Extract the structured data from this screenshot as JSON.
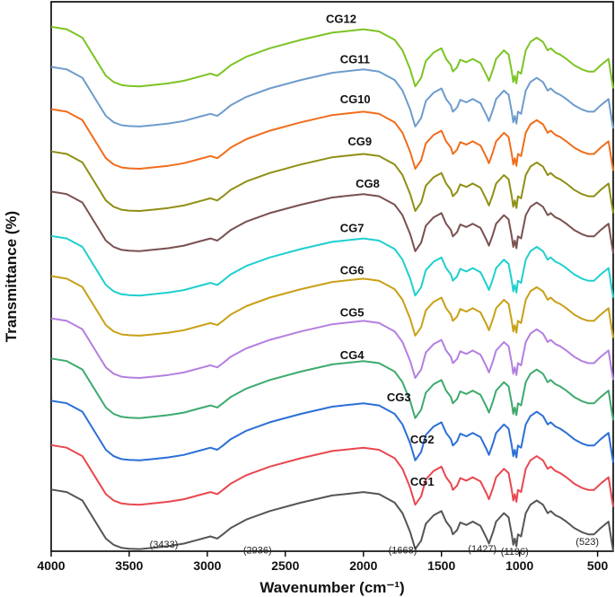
{
  "chart_data": {
    "type": "line",
    "title": "",
    "xlabel": "Wavenumber (cm⁻¹)",
    "ylabel": "Transmittance (%)",
    "xlim": [
      4000,
      400
    ],
    "x_reversed": true,
    "ylim": [
      0,
      13
    ],
    "y_ticks_shown": false,
    "x_ticks": [
      4000,
      3500,
      3000,
      2500,
      2000,
      1500,
      1000,
      500
    ],
    "x_tick_labels": [
      "4000",
      "3500",
      "3000",
      "2500",
      "2000",
      "1500",
      "1000",
      "500"
    ],
    "x": [
      4000,
      3900,
      3800,
      3700,
      3650,
      3600,
      3550,
      3500,
      3433,
      3350,
      3250,
      3150,
      3050,
      2980,
      2936,
      2900,
      2850,
      2750,
      2600,
      2400,
      2200,
      2000,
      1900,
      1800,
      1750,
      1700,
      1668,
      1630,
      1600,
      1550,
      1500,
      1470,
      1440,
      1427,
      1400,
      1380,
      1340,
      1300,
      1250,
      1210,
      1196,
      1170,
      1150,
      1100,
      1070,
      1050,
      1040,
      1030,
      1020,
      1010,
      990,
      960,
      930,
      890,
      850,
      820,
      800,
      770,
      740,
      700,
      650,
      600,
      560,
      523,
      480,
      430,
      400
    ],
    "series": [
      {
        "name": "CG1",
        "color": "#555555",
        "offset": 0.0,
        "values": [
          1.46,
          1.4,
          1.2,
          0.6,
          0.3,
          0.15,
          0.08,
          0.06,
          0.05,
          0.08,
          0.12,
          0.18,
          0.28,
          0.35,
          0.3,
          0.4,
          0.55,
          0.75,
          0.95,
          1.15,
          1.32,
          1.4,
          1.35,
          1.15,
          0.9,
          0.45,
          0.05,
          0.25,
          0.65,
          0.85,
          0.95,
          0.7,
          0.55,
          0.4,
          0.5,
          0.68,
          0.62,
          0.7,
          0.6,
          0.3,
          0.18,
          0.45,
          0.7,
          0.9,
          0.8,
          0.4,
          0.15,
          0.3,
          0.12,
          0.4,
          0.35,
          0.9,
          1.1,
          1.2,
          1.1,
          0.9,
          0.95,
          0.85,
          0.8,
          0.7,
          0.55,
          0.45,
          0.4,
          0.4,
          0.55,
          0.7,
          0.0
        ]
      },
      {
        "name": "CG2",
        "color": "#e8474e",
        "offset": 1.05,
        "values": [
          1.46,
          1.4,
          1.2,
          0.6,
          0.3,
          0.15,
          0.08,
          0.06,
          0.05,
          0.08,
          0.12,
          0.18,
          0.28,
          0.35,
          0.3,
          0.4,
          0.55,
          0.75,
          0.95,
          1.15,
          1.32,
          1.4,
          1.35,
          1.15,
          0.9,
          0.45,
          0.05,
          0.25,
          0.65,
          0.85,
          0.95,
          0.7,
          0.55,
          0.4,
          0.5,
          0.68,
          0.62,
          0.7,
          0.6,
          0.3,
          0.18,
          0.45,
          0.7,
          0.9,
          0.8,
          0.4,
          0.15,
          0.3,
          0.12,
          0.4,
          0.35,
          0.9,
          1.1,
          1.2,
          1.1,
          0.9,
          0.95,
          0.85,
          0.8,
          0.7,
          0.55,
          0.45,
          0.4,
          0.4,
          0.55,
          0.7,
          0.0
        ]
      },
      {
        "name": "CG3",
        "color": "#2b6fd6",
        "offset": 2.1,
        "values": [
          1.46,
          1.4,
          1.2,
          0.6,
          0.3,
          0.15,
          0.08,
          0.06,
          0.05,
          0.08,
          0.12,
          0.18,
          0.28,
          0.35,
          0.3,
          0.4,
          0.55,
          0.75,
          0.95,
          1.15,
          1.32,
          1.4,
          1.35,
          1.15,
          0.9,
          0.45,
          0.05,
          0.25,
          0.65,
          0.85,
          0.95,
          0.7,
          0.55,
          0.4,
          0.5,
          0.68,
          0.62,
          0.7,
          0.6,
          0.3,
          0.18,
          0.45,
          0.7,
          0.9,
          0.8,
          0.4,
          0.15,
          0.3,
          0.12,
          0.4,
          0.35,
          0.9,
          1.1,
          1.2,
          1.1,
          0.9,
          0.95,
          0.85,
          0.8,
          0.7,
          0.55,
          0.45,
          0.4,
          0.4,
          0.55,
          0.7,
          0.0
        ]
      },
      {
        "name": "CG4",
        "color": "#3daa6e",
        "offset": 3.1,
        "values": [
          1.46,
          1.4,
          1.2,
          0.6,
          0.3,
          0.15,
          0.08,
          0.06,
          0.05,
          0.08,
          0.12,
          0.18,
          0.28,
          0.35,
          0.3,
          0.4,
          0.55,
          0.75,
          0.95,
          1.15,
          1.32,
          1.4,
          1.35,
          1.15,
          0.9,
          0.45,
          0.05,
          0.25,
          0.65,
          0.85,
          0.95,
          0.7,
          0.55,
          0.4,
          0.5,
          0.68,
          0.62,
          0.7,
          0.6,
          0.3,
          0.18,
          0.45,
          0.7,
          0.9,
          0.8,
          0.4,
          0.15,
          0.3,
          0.12,
          0.4,
          0.35,
          0.9,
          1.1,
          1.2,
          1.1,
          0.9,
          0.95,
          0.85,
          0.8,
          0.7,
          0.55,
          0.45,
          0.4,
          0.4,
          0.55,
          0.7,
          0.0
        ]
      },
      {
        "name": "CG5",
        "color": "#b47fe0",
        "offset": 4.05,
        "values": [
          1.46,
          1.4,
          1.2,
          0.6,
          0.3,
          0.15,
          0.08,
          0.06,
          0.05,
          0.08,
          0.12,
          0.18,
          0.28,
          0.35,
          0.3,
          0.4,
          0.55,
          0.75,
          0.95,
          1.15,
          1.32,
          1.4,
          1.35,
          1.15,
          0.9,
          0.45,
          0.05,
          0.25,
          0.65,
          0.85,
          0.95,
          0.7,
          0.55,
          0.4,
          0.5,
          0.68,
          0.62,
          0.7,
          0.6,
          0.3,
          0.18,
          0.45,
          0.7,
          0.9,
          0.8,
          0.4,
          0.15,
          0.3,
          0.12,
          0.4,
          0.35,
          0.9,
          1.1,
          1.2,
          1.1,
          0.9,
          0.95,
          0.85,
          0.8,
          0.7,
          0.55,
          0.45,
          0.4,
          0.4,
          0.55,
          0.7,
          0.0
        ]
      },
      {
        "name": "CG6",
        "color": "#c9a017",
        "offset": 5.05,
        "values": [
          1.46,
          1.4,
          1.2,
          0.6,
          0.3,
          0.15,
          0.08,
          0.06,
          0.05,
          0.08,
          0.12,
          0.18,
          0.28,
          0.35,
          0.3,
          0.4,
          0.55,
          0.75,
          0.95,
          1.15,
          1.32,
          1.4,
          1.35,
          1.15,
          0.9,
          0.45,
          0.05,
          0.25,
          0.65,
          0.85,
          0.95,
          0.7,
          0.55,
          0.4,
          0.5,
          0.68,
          0.62,
          0.7,
          0.6,
          0.3,
          0.18,
          0.45,
          0.7,
          0.9,
          0.8,
          0.4,
          0.15,
          0.3,
          0.12,
          0.4,
          0.35,
          0.9,
          1.1,
          1.2,
          1.1,
          0.9,
          0.95,
          0.85,
          0.8,
          0.7,
          0.55,
          0.45,
          0.4,
          0.4,
          0.55,
          0.7,
          0.0
        ]
      },
      {
        "name": "CG7",
        "color": "#1fcfcf",
        "offset": 6.0,
        "values": [
          1.46,
          1.4,
          1.2,
          0.6,
          0.3,
          0.15,
          0.08,
          0.06,
          0.05,
          0.08,
          0.12,
          0.18,
          0.28,
          0.35,
          0.3,
          0.4,
          0.55,
          0.75,
          0.95,
          1.15,
          1.32,
          1.4,
          1.35,
          1.15,
          0.9,
          0.45,
          0.05,
          0.25,
          0.65,
          0.85,
          0.95,
          0.7,
          0.55,
          0.4,
          0.5,
          0.68,
          0.62,
          0.7,
          0.6,
          0.3,
          0.18,
          0.45,
          0.7,
          0.9,
          0.8,
          0.4,
          0.15,
          0.3,
          0.12,
          0.4,
          0.35,
          0.9,
          1.1,
          1.2,
          1.1,
          0.9,
          0.95,
          0.85,
          0.8,
          0.7,
          0.55,
          0.45,
          0.4,
          0.4,
          0.55,
          0.7,
          0.0
        ]
      },
      {
        "name": "CG8",
        "color": "#7a5050",
        "offset": 7.05,
        "values": [
          1.46,
          1.4,
          1.2,
          0.6,
          0.3,
          0.15,
          0.08,
          0.06,
          0.05,
          0.08,
          0.12,
          0.18,
          0.28,
          0.35,
          0.3,
          0.4,
          0.55,
          0.75,
          0.95,
          1.15,
          1.32,
          1.4,
          1.35,
          1.15,
          0.9,
          0.45,
          0.05,
          0.25,
          0.65,
          0.85,
          0.95,
          0.7,
          0.55,
          0.4,
          0.5,
          0.68,
          0.62,
          0.7,
          0.6,
          0.3,
          0.18,
          0.45,
          0.7,
          0.9,
          0.8,
          0.4,
          0.15,
          0.3,
          0.12,
          0.4,
          0.35,
          0.9,
          1.1,
          1.2,
          1.1,
          0.9,
          0.95,
          0.85,
          0.8,
          0.7,
          0.55,
          0.45,
          0.4,
          0.4,
          0.55,
          0.7,
          0.0
        ]
      },
      {
        "name": "CG9",
        "color": "#8f8f14",
        "offset": 8.0,
        "values": [
          1.46,
          1.4,
          1.2,
          0.6,
          0.3,
          0.15,
          0.08,
          0.06,
          0.05,
          0.08,
          0.12,
          0.18,
          0.28,
          0.35,
          0.3,
          0.4,
          0.55,
          0.75,
          0.95,
          1.15,
          1.32,
          1.4,
          1.35,
          1.15,
          0.9,
          0.45,
          0.05,
          0.25,
          0.65,
          0.85,
          0.95,
          0.7,
          0.55,
          0.4,
          0.5,
          0.68,
          0.62,
          0.7,
          0.6,
          0.3,
          0.18,
          0.45,
          0.7,
          0.9,
          0.8,
          0.4,
          0.15,
          0.3,
          0.12,
          0.4,
          0.35,
          0.9,
          1.1,
          1.2,
          1.1,
          0.9,
          0.95,
          0.85,
          0.8,
          0.7,
          0.55,
          0.45,
          0.4,
          0.4,
          0.55,
          0.7,
          0.0
        ]
      },
      {
        "name": "CG10",
        "color": "#f06d1c",
        "offset": 9.0,
        "values": [
          1.46,
          1.4,
          1.2,
          0.6,
          0.3,
          0.15,
          0.08,
          0.06,
          0.05,
          0.08,
          0.12,
          0.18,
          0.28,
          0.35,
          0.3,
          0.4,
          0.55,
          0.75,
          0.95,
          1.15,
          1.32,
          1.4,
          1.35,
          1.15,
          0.9,
          0.45,
          0.05,
          0.25,
          0.65,
          0.85,
          0.95,
          0.7,
          0.55,
          0.4,
          0.5,
          0.68,
          0.62,
          0.7,
          0.6,
          0.3,
          0.18,
          0.45,
          0.7,
          0.9,
          0.8,
          0.4,
          0.15,
          0.3,
          0.12,
          0.4,
          0.35,
          0.9,
          1.1,
          1.2,
          1.1,
          0.9,
          0.95,
          0.85,
          0.8,
          0.7,
          0.55,
          0.45,
          0.4,
          0.4,
          0.55,
          0.7,
          0.0
        ]
      },
      {
        "name": "CG11",
        "color": "#6e9ccc",
        "offset": 10.0,
        "values": [
          1.46,
          1.4,
          1.2,
          0.6,
          0.3,
          0.15,
          0.08,
          0.06,
          0.05,
          0.08,
          0.12,
          0.18,
          0.28,
          0.35,
          0.3,
          0.4,
          0.55,
          0.75,
          0.95,
          1.15,
          1.32,
          1.4,
          1.35,
          1.15,
          0.9,
          0.45,
          0.05,
          0.25,
          0.65,
          0.85,
          0.95,
          0.7,
          0.55,
          0.4,
          0.5,
          0.68,
          0.62,
          0.7,
          0.6,
          0.3,
          0.18,
          0.45,
          0.7,
          0.9,
          0.8,
          0.4,
          0.15,
          0.3,
          0.12,
          0.4,
          0.35,
          0.9,
          1.1,
          1.2,
          1.1,
          0.9,
          0.95,
          0.85,
          0.8,
          0.7,
          0.55,
          0.45,
          0.4,
          0.4,
          0.55,
          0.7,
          0.0
        ]
      },
      {
        "name": "CG12",
        "color": "#7cc424",
        "offset": 10.95,
        "values": [
          1.46,
          1.4,
          1.2,
          0.6,
          0.3,
          0.15,
          0.08,
          0.06,
          0.05,
          0.08,
          0.12,
          0.18,
          0.28,
          0.35,
          0.3,
          0.4,
          0.55,
          0.75,
          0.95,
          1.15,
          1.32,
          1.4,
          1.35,
          1.15,
          0.9,
          0.45,
          0.05,
          0.25,
          0.65,
          0.85,
          0.95,
          0.7,
          0.55,
          0.4,
          0.5,
          0.68,
          0.62,
          0.7,
          0.6,
          0.3,
          0.18,
          0.45,
          0.7,
          0.9,
          0.8,
          0.4,
          0.15,
          0.3,
          0.12,
          0.4,
          0.35,
          0.9,
          1.1,
          1.2,
          1.1,
          0.9,
          0.95,
          0.85,
          0.8,
          0.7,
          0.55,
          0.45,
          0.4,
          0.4,
          0.55,
          0.7,
          0.0
        ]
      }
    ],
    "series_labels": [
      {
        "text": "CG1",
        "x": 1700,
        "y": 1.55
      },
      {
        "text": "CG2",
        "x": 1700,
        "y": 2.55
      },
      {
        "text": "CG3",
        "x": 1850,
        "y": 3.55
      },
      {
        "text": "CG4",
        "x": 2150,
        "y": 4.55
      },
      {
        "text": "CG5",
        "x": 2150,
        "y": 5.55
      },
      {
        "text": "CG6",
        "x": 2150,
        "y": 6.55
      },
      {
        "text": "CG7",
        "x": 2150,
        "y": 7.55
      },
      {
        "text": "CG8",
        "x": 2050,
        "y": 8.6
      },
      {
        "text": "CG9",
        "x": 2100,
        "y": 9.6
      },
      {
        "text": "CG10",
        "x": 2150,
        "y": 10.6
      },
      {
        "text": "CG11",
        "x": 2150,
        "y": 11.55
      },
      {
        "text": "CG12",
        "x": 2240,
        "y": 12.5
      }
    ],
    "annotations": [
      {
        "text": "(3433)",
        "x": 3370,
        "y": 0.08
      },
      {
        "text": "(2936)",
        "x": 2770,
        "y": -0.05
      },
      {
        "text": "(1668)",
        "x": 1840,
        "y": -0.05
      },
      {
        "text": "(1427)",
        "x": 1330,
        "y": -0.02
      },
      {
        "text": "(1196)",
        "x": 1120,
        "y": -0.08
      },
      {
        "text": "(523)",
        "x": 640,
        "y": 0.15
      }
    ]
  }
}
